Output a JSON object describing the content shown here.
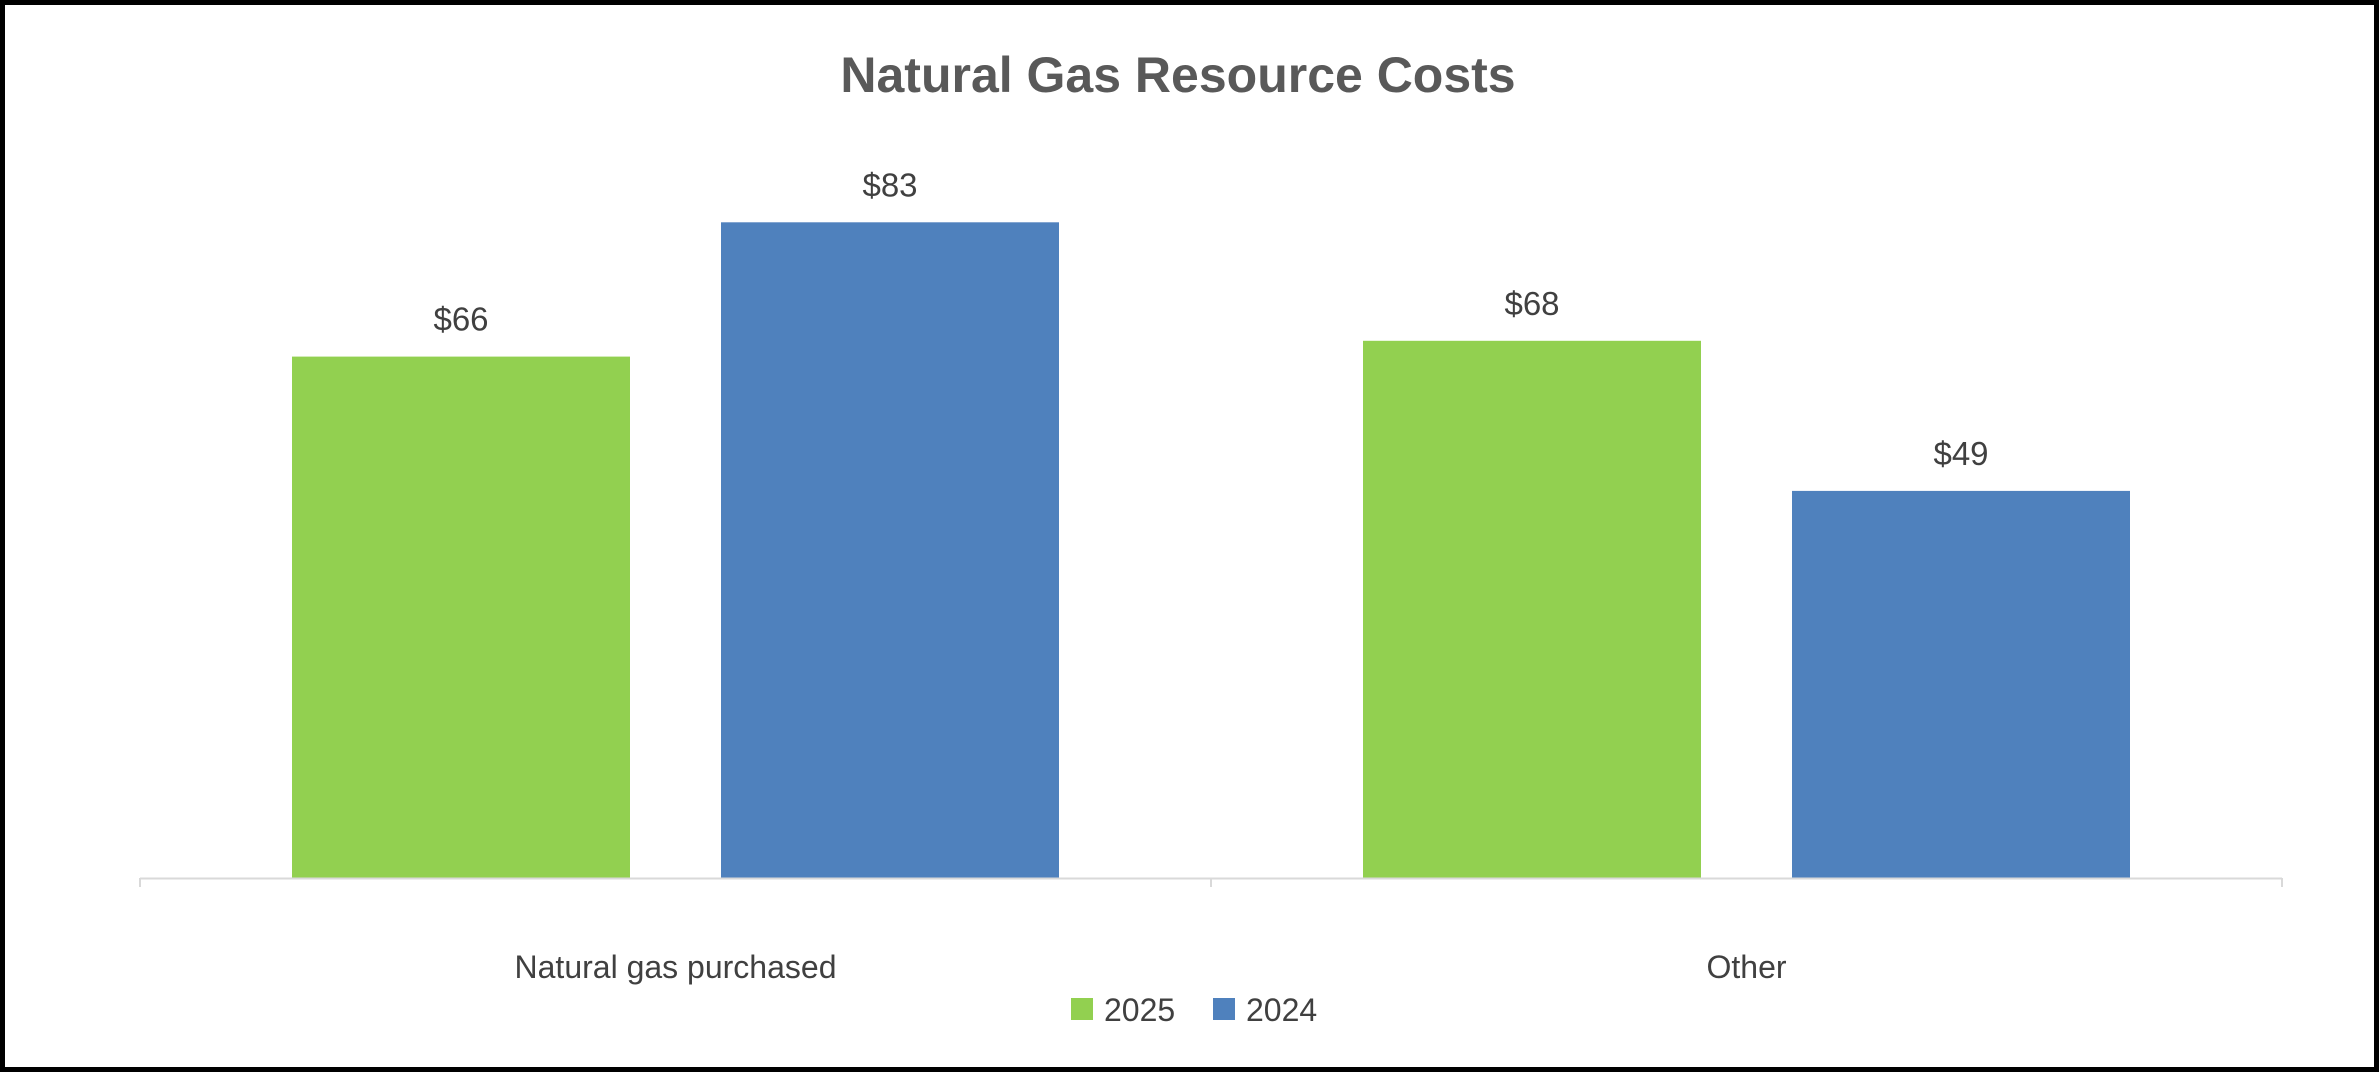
{
  "chart_data": {
    "type": "bar",
    "title": "Natural Gas Resource Costs",
    "xlabel": "",
    "ylabel": "",
    "categories": [
      "Natural gas purchased",
      "Other"
    ],
    "series": [
      {
        "name": "2025",
        "values": [
          66,
          68
        ],
        "labels": [
          "$66",
          "$68"
        ],
        "color": "#92d050"
      },
      {
        "name": "2024",
        "values": [
          83,
          49
        ],
        "labels": [
          "$83",
          "$49"
        ],
        "color": "#4f81bd"
      }
    ],
    "ylim": [
      0,
      100
    ],
    "grid": false,
    "legend": "bottom",
    "axis_color": "#d9d9d9"
  }
}
